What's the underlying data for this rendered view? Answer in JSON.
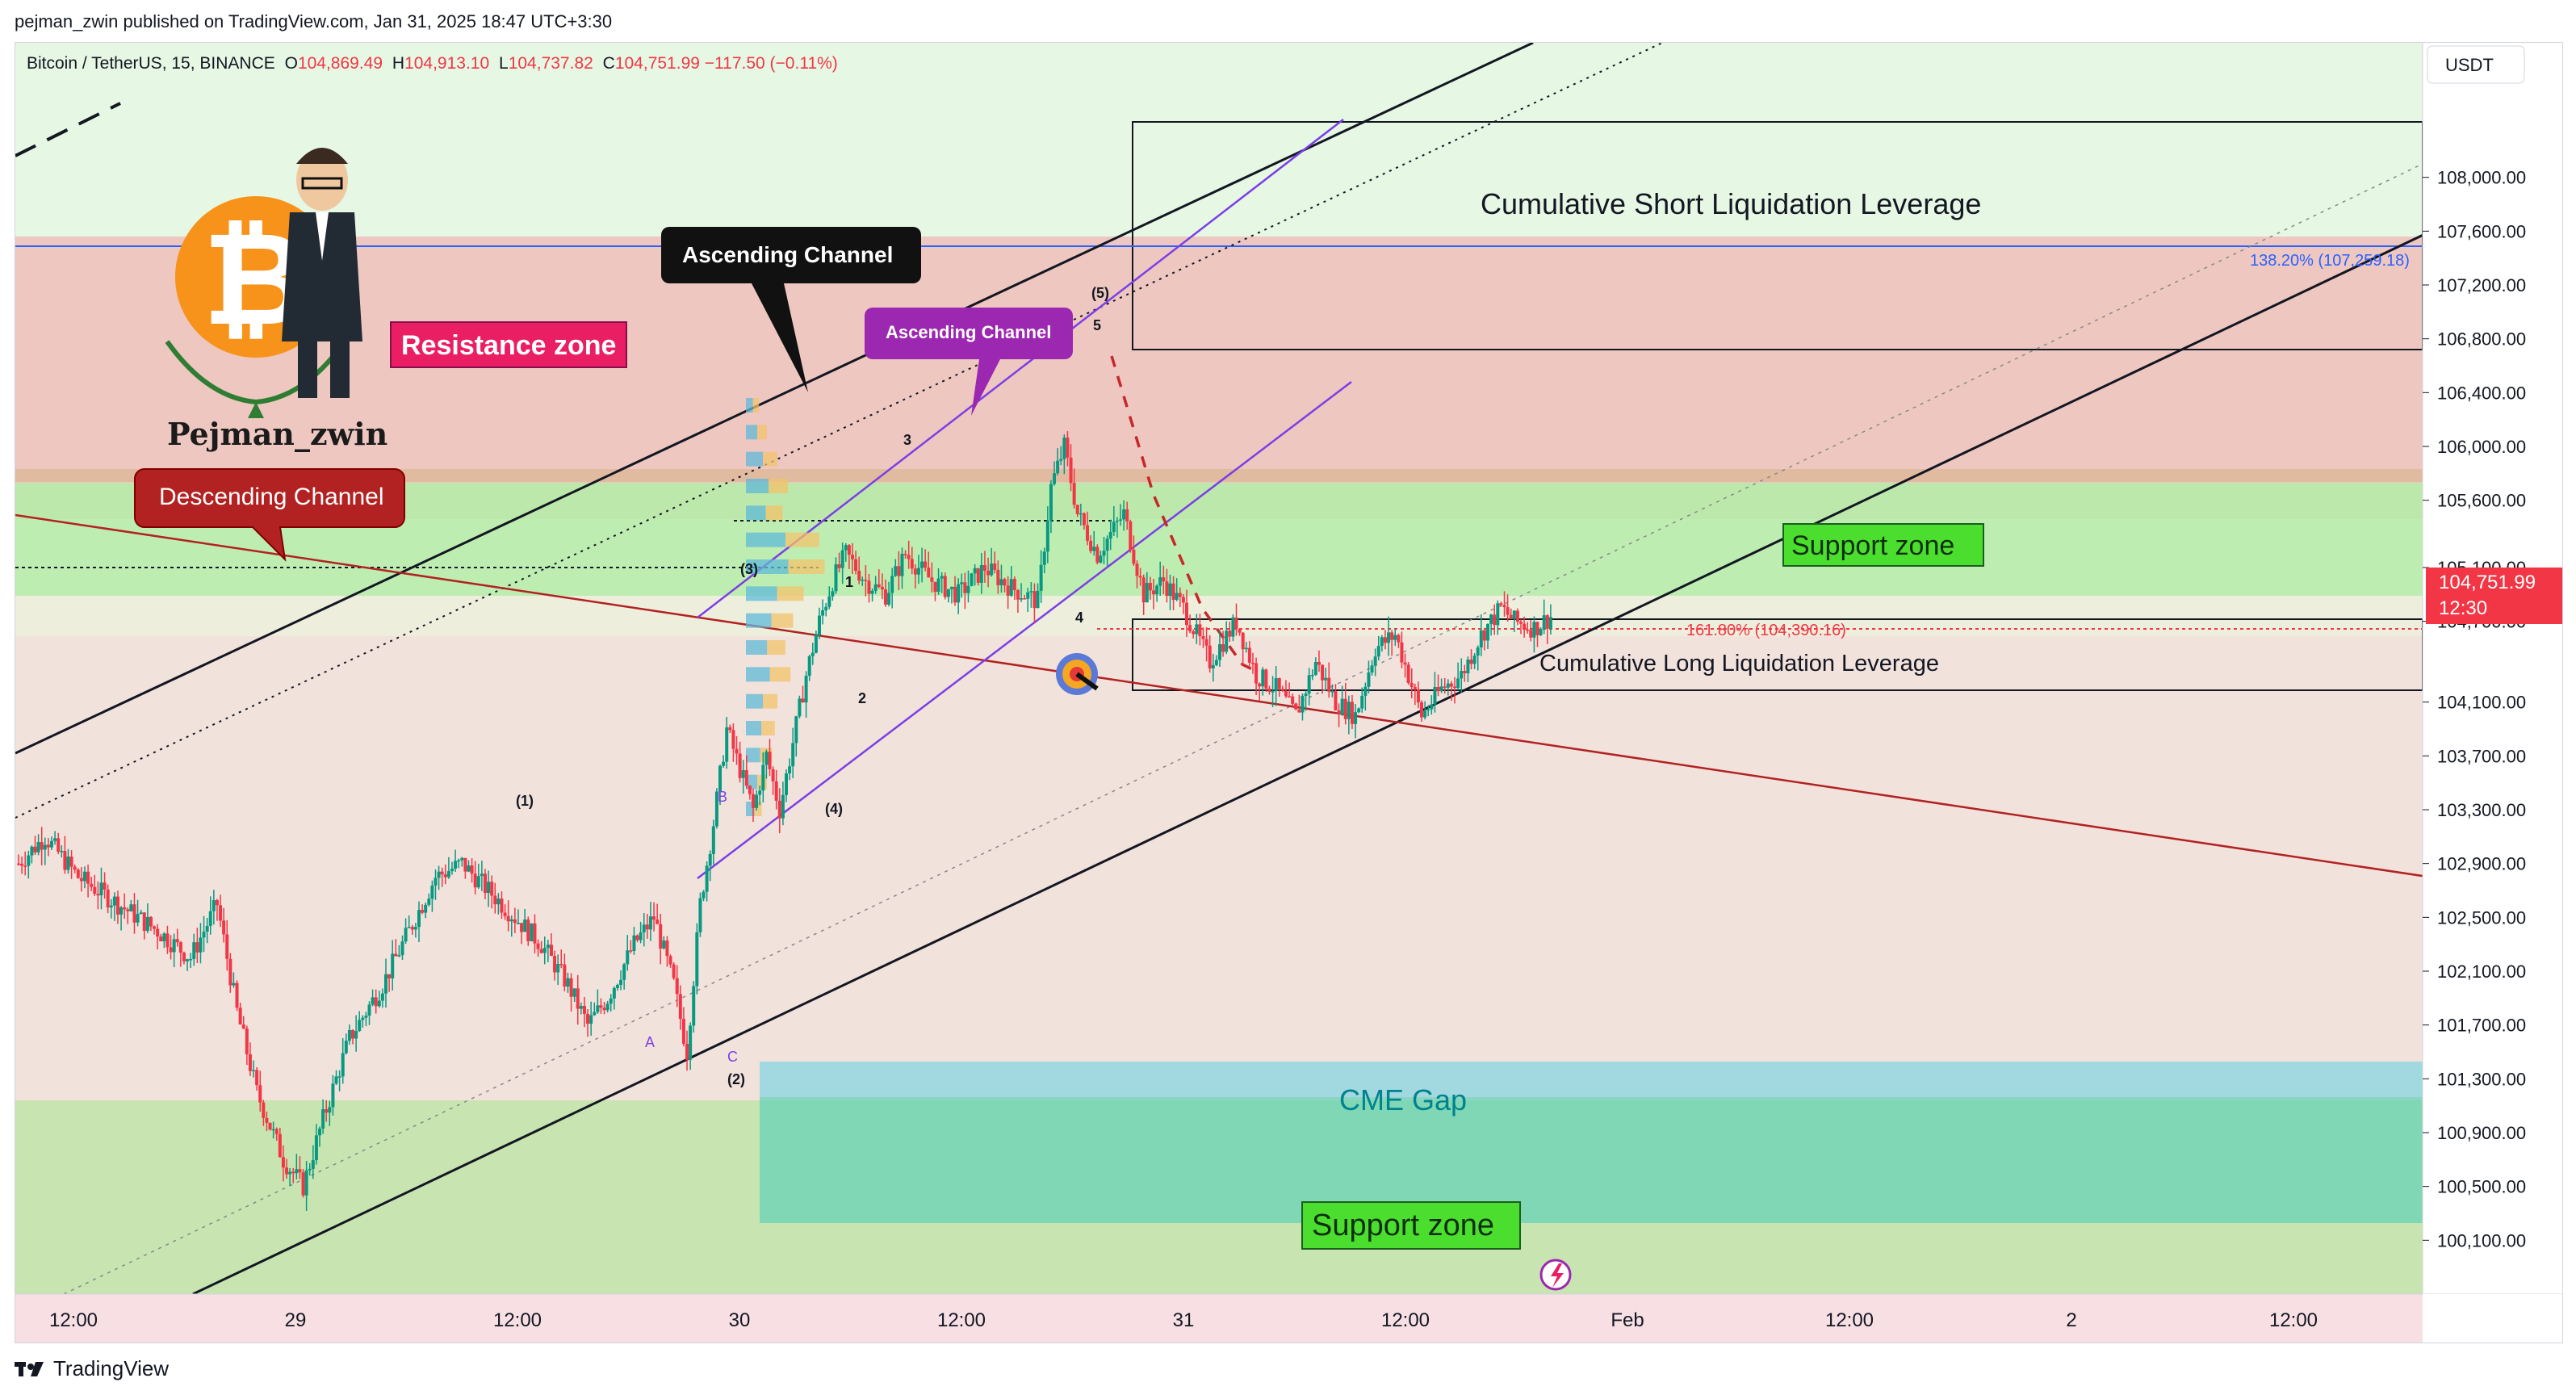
{
  "publisher_line": "pejman_zwin published on TradingView.com, Jan 31, 2025 18:47 UTC+3:30",
  "header": {
    "symbol": "Bitcoin / TetherUS, 15, BINANCE",
    "o_label": "O",
    "o": "104,869.49",
    "h_label": "H",
    "h": "104,913.10",
    "l_label": "L",
    "l": "104,737.82",
    "c_label": "C",
    "c": "104,751.99",
    "change": "−117.50 (−0.11%)"
  },
  "footer": {
    "brand": "TradingView"
  },
  "logo": {
    "name": "Pejman_zwin"
  },
  "colors": {
    "up": "#089981",
    "down": "#f23645",
    "resistance": "#e8b4ac",
    "support": "#a8f0a0",
    "cme": "#5fd1b8",
    "channel_purple": "#7b3fe4",
    "desc_channel": "#b22222"
  },
  "chart_data": {
    "type": "candlestick",
    "currency": "USDT",
    "ylim": [
      99700,
      109000
    ],
    "y_ticks": [
      "108,000.00",
      "107,600.00",
      "107,200.00",
      "106,800.00",
      "106,400.00",
      "106,000.00",
      "105,600.00",
      "105,100.00",
      "104,700.00",
      "104,100.00",
      "103,700.00",
      "103,300.00",
      "102,900.00",
      "102,500.00",
      "102,100.00",
      "101,700.00",
      "101,300.00",
      "100,900.00",
      "100,500.00",
      "100,100.00"
    ],
    "x_ticks": [
      "12:00",
      "29",
      "12:00",
      "30",
      "12:00",
      "31",
      "12:00",
      "Feb",
      "12:00",
      "2",
      "12:00"
    ],
    "last_price": "104,751.99",
    "countdown": "12:30",
    "path_points": [
      [
        0,
        102900
      ],
      [
        8,
        103100
      ],
      [
        18,
        102800
      ],
      [
        30,
        102600
      ],
      [
        42,
        102400
      ],
      [
        52,
        102200
      ],
      [
        60,
        102600
      ],
      [
        66,
        101800
      ],
      [
        72,
        101200
      ],
      [
        80,
        100700
      ],
      [
        86,
        100500
      ],
      [
        92,
        101000
      ],
      [
        100,
        101600
      ],
      [
        110,
        102000
      ],
      [
        118,
        102400
      ],
      [
        126,
        102800
      ],
      [
        134,
        102900
      ],
      [
        142,
        102700
      ],
      [
        150,
        102500
      ],
      [
        158,
        102300
      ],
      [
        166,
        102000
      ],
      [
        172,
        101700
      ],
      [
        178,
        101900
      ],
      [
        186,
        102300
      ],
      [
        192,
        102500
      ],
      [
        198,
        102000
      ],
      [
        202,
        101500
      ],
      [
        206,
        102600
      ],
      [
        210,
        103200
      ],
      [
        214,
        103900
      ],
      [
        218,
        103600
      ],
      [
        222,
        103300
      ],
      [
        226,
        103700
      ],
      [
        230,
        103300
      ],
      [
        234,
        103800
      ],
      [
        238,
        104300
      ],
      [
        242,
        104700
      ],
      [
        246,
        105000
      ],
      [
        250,
        105200
      ],
      [
        256,
        105000
      ],
      [
        262,
        104900
      ],
      [
        268,
        105200
      ],
      [
        276,
        105000
      ],
      [
        284,
        104900
      ],
      [
        292,
        105100
      ],
      [
        300,
        104950
      ],
      [
        308,
        104850
      ],
      [
        312,
        105700
      ],
      [
        316,
        106000
      ],
      [
        320,
        105500
      ],
      [
        326,
        105200
      ],
      [
        334,
        105500
      ],
      [
        340,
        104900
      ],
      [
        346,
        105000
      ],
      [
        352,
        104800
      ],
      [
        360,
        104400
      ],
      [
        368,
        104700
      ],
      [
        374,
        104300
      ],
      [
        380,
        104200
      ],
      [
        386,
        104000
      ],
      [
        392,
        104400
      ],
      [
        398,
        104100
      ],
      [
        404,
        104000
      ],
      [
        410,
        104500
      ],
      [
        416,
        104600
      ],
      [
        420,
        104300
      ],
      [
        424,
        104000
      ],
      [
        430,
        104200
      ],
      [
        436,
        104300
      ],
      [
        442,
        104600
      ],
      [
        448,
        104800
      ],
      [
        452,
        104700
      ],
      [
        458,
        104650
      ],
      [
        464,
        104752
      ]
    ],
    "fib_levels": [
      "138.20% (107,259.18)",
      "161.80% (104,390.16)"
    ],
    "zones": {
      "resistance": [
        105500,
        107300
      ],
      "support_upper": [
        104600,
        105500
      ],
      "support_lower": [
        99700,
        101300
      ],
      "cme_gap": [
        100400,
        101500
      ],
      "short_liq_box": [
        106500,
        108200
      ],
      "long_liq_box": [
        103900,
        104400
      ]
    },
    "labels": {
      "resistance_zone": "Resistance zone",
      "support_zone_1": "Support zone",
      "support_zone_2": "Support zone",
      "cme_gap": "CME Gap",
      "short_liq": "Cumulative Short Liquidation Leverage",
      "long_liq": "Cumulative Long Liquidation Leverage",
      "ascending_channel_1": "Ascending Channel",
      "ascending_channel_2": "Ascending Channel",
      "descending_channel": "Descending Channel"
    },
    "wave_labels": [
      "(1)",
      "(2)",
      "(3)",
      "(4)",
      "(5)",
      "1",
      "2",
      "3",
      "4",
      "5",
      "A",
      "B",
      "C"
    ]
  }
}
